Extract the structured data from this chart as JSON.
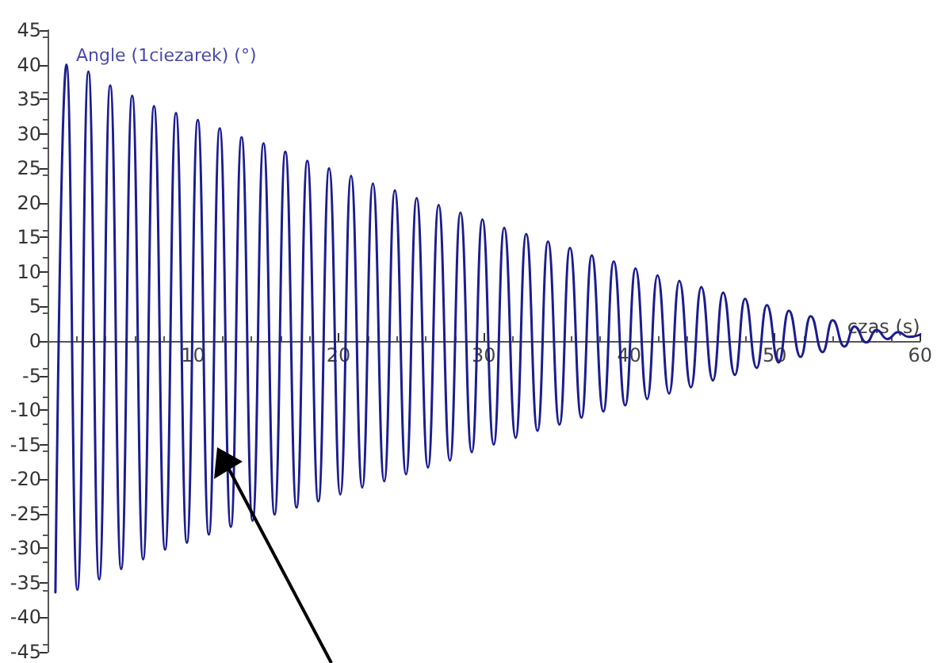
{
  "chart_data": {
    "type": "line",
    "xlabel": "czas (s)",
    "ylabel": "Angle (1ciezarek) (°)",
    "xlim": [
      0,
      60
    ],
    "xticks": [
      10,
      20,
      30,
      40,
      50,
      60
    ],
    "ylim": [
      -45,
      45
    ],
    "yticks": [
      -45,
      -40,
      -35,
      -30,
      -25,
      -20,
      -15,
      -10,
      -5,
      0,
      5,
      10,
      15,
      20,
      25,
      30,
      35,
      40,
      45
    ],
    "grid": false,
    "marker": "none",
    "line_style": "solid",
    "series": [
      {
        "color": "#1c1c8f",
        "x": [
          0.54,
          1.3,
          2.05,
          2.81,
          3.55,
          4.31,
          5.06,
          5.82,
          6.57,
          7.32,
          8.08,
          8.83,
          9.58,
          10.33,
          11.09,
          11.84,
          12.6,
          13.34,
          14.1,
          14.85,
          15.61,
          16.35,
          17.12,
          17.86,
          18.62,
          19.36,
          20.13,
          20.87,
          21.64,
          22.37,
          23.15,
          23.88,
          24.65,
          25.38,
          26.16,
          26.89,
          27.67,
          28.39,
          29.17,
          29.9,
          30.68,
          31.4,
          32.19,
          32.91,
          33.69,
          34.41,
          35.2,
          35.92,
          36.71,
          37.42,
          38.22,
          38.93,
          39.72,
          40.43,
          41.23,
          41.94,
          42.74,
          43.44,
          44.24,
          44.95,
          45.75,
          46.45,
          47.26,
          47.96,
          48.76,
          49.46,
          50.27,
          50.97,
          51.78,
          52.47,
          53.29,
          53.98,
          54.79,
          55.48,
          56.3,
          56.99,
          57.75,
          58.49,
          59.2,
          60
        ],
        "values": [
          -36.4,
          40,
          -36.0,
          39,
          -34.5,
          37,
          -33.0,
          35.5,
          -31.6,
          34,
          -30.2,
          33,
          -29.2,
          32,
          -28.0,
          30.8,
          -26.9,
          29.5,
          -26.0,
          28.6,
          -25.1,
          27.4,
          -24.1,
          26.1,
          -23.2,
          25,
          -22.2,
          23.9,
          -21.2,
          22.8,
          -20.3,
          21.8,
          -19.3,
          20.7,
          -18.3,
          19.7,
          -17.3,
          18.6,
          -16.1,
          17.6,
          -15.0,
          16.4,
          -14.0,
          15.5,
          -13.0,
          14.4,
          -12.1,
          13.5,
          -11.1,
          12.4,
          -10.2,
          11.5,
          -9.3,
          10.5,
          -8.4,
          9.5,
          -7.6,
          8.7,
          -6.7,
          7.8,
          -5.7,
          7.0,
          -4.9,
          6.1,
          -3.9,
          5.2,
          -3.1,
          4.4,
          -2.3,
          3.6,
          -1.6,
          3.0,
          -0.8,
          2.1,
          -0.2,
          1.6,
          0.3,
          1.3,
          0.6,
          0.9
        ]
      }
    ]
  }
}
